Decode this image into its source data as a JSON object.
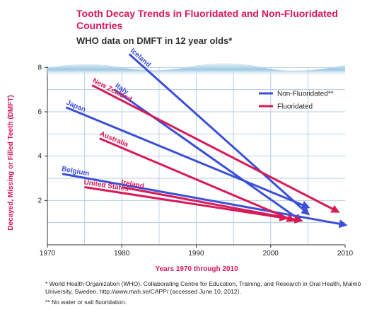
{
  "chart_data": {
    "type": "line",
    "title": "Tooth Decay Trends in Fluoridated and Non-Fluoridated Countries",
    "subtitle": "WHO data on DMFT in 12 year olds*",
    "x_label": "Years 1970 through 2010",
    "y_label": "Decayed, Missing or Filled Teeth (DMFT)",
    "xlim": [
      1970,
      2010
    ],
    "xticks": [
      1970,
      1980,
      1990,
      2000,
      2010
    ],
    "ylim": [
      0,
      9
    ],
    "yticks": [
      2,
      4,
      6,
      8
    ],
    "xgrid": [
      1975,
      1980,
      1985,
      1990,
      1995,
      2000,
      2005
    ],
    "ygrid": [
      1,
      2,
      3,
      4,
      5,
      6,
      7,
      8
    ],
    "legend": [
      {
        "name": "Non-Fluoridated**",
        "color": "#3b4fd8"
      },
      {
        "name": "Fluoridated",
        "color": "#d81a55"
      }
    ],
    "series": [
      {
        "name": "Iceland",
        "color": "#3b4fd8",
        "x": [
          1981,
          2005
        ],
        "values": [
          8.6,
          1.4
        ]
      },
      {
        "name": "Italy",
        "color": "#3b4fd8",
        "x": [
          1979,
          2004
        ],
        "values": [
          7.0,
          1.1
        ]
      },
      {
        "name": "Japan",
        "color": "#3b4fd8",
        "x": [
          1972.5,
          2005
        ],
        "values": [
          6.2,
          1.7
        ]
      },
      {
        "name": "Belgium",
        "color": "#3b4fd8",
        "x": [
          1972,
          2010
        ],
        "values": [
          3.2,
          0.9
        ]
      },
      {
        "name": "New Zealand",
        "color": "#d81a55",
        "x": [
          1976,
          2009
        ],
        "values": [
          7.2,
          1.5
        ]
      },
      {
        "name": "Australia",
        "color": "#d81a55",
        "x": [
          1977,
          2003
        ],
        "values": [
          4.8,
          1.1
        ]
      },
      {
        "name": "Ireland",
        "color": "#d81a55",
        "x": [
          1980,
          2004
        ],
        "values": [
          2.6,
          1.1
        ]
      },
      {
        "name": "United States",
        "color": "#d81a55",
        "x": [
          1975,
          2002
        ],
        "values": [
          2.6,
          1.2
        ]
      }
    ],
    "footnotes": [
      "* World Health Organization (WHO). Collaborating Centre for Education, Training, and Research in Oral Health, Malmö University, Sweden. http://www.mah.se/CAPP/ (accessed June 10, 2012).",
      "** No water or salt fluoridation."
    ]
  }
}
